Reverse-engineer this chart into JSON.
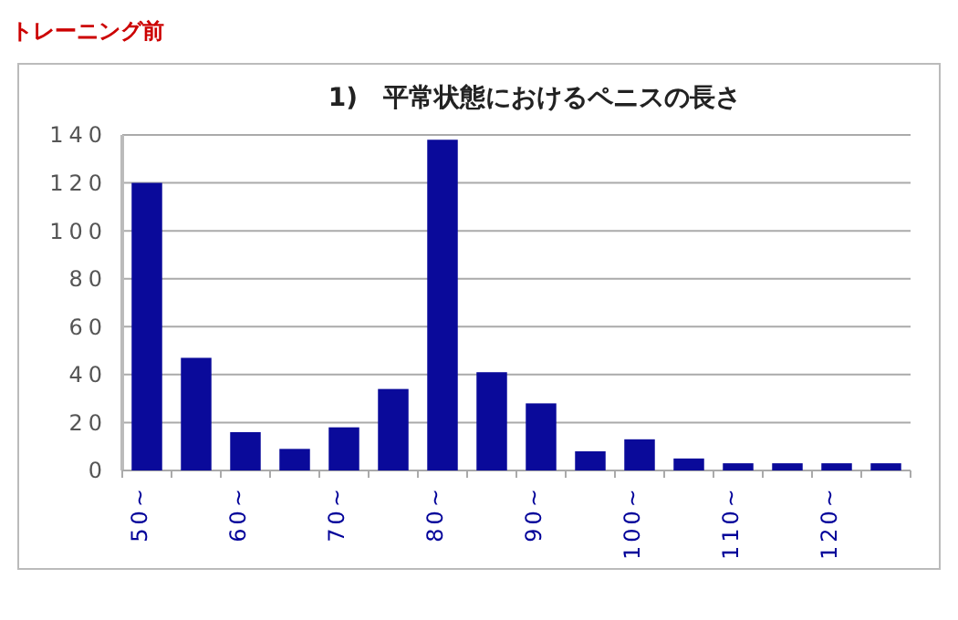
{
  "chart_data": {
    "type": "bar",
    "title": "1)　平常状態におけるペニスの長さ",
    "annotations": [
      "トレーニング前"
    ],
    "categories": [
      "50~",
      null,
      "60~",
      null,
      "70~",
      null,
      "80~",
      null,
      "90~",
      null,
      "100~",
      null,
      "110~",
      null,
      "120~",
      null
    ],
    "values": [
      120,
      47,
      16,
      9,
      18,
      34,
      138,
      41,
      28,
      8,
      13,
      5,
      3,
      3,
      3,
      3
    ],
    "color": "#0a0a9a",
    "ylim": [
      0,
      140
    ],
    "yticks": [
      0,
      20,
      40,
      60,
      80,
      100,
      120,
      140
    ],
    "grid": "y"
  }
}
